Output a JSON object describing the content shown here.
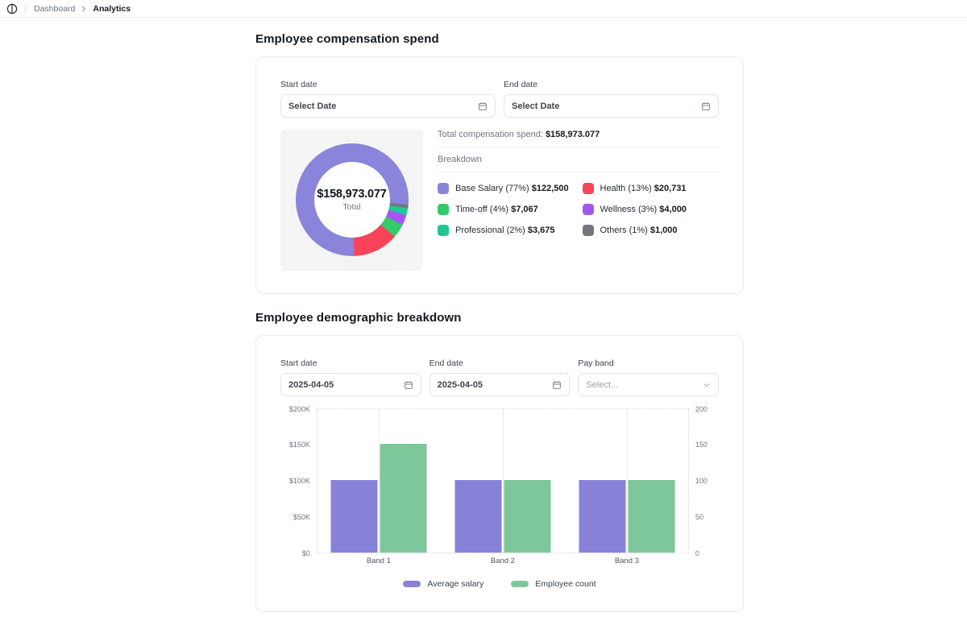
{
  "topbar": {
    "breadcrumb": {
      "parent": "Dashboard",
      "current": "Analytics"
    }
  },
  "compensation": {
    "title": "Employee compensation spend",
    "filters": {
      "start_label": "Start date",
      "start_value": "Select Date",
      "end_label": "End date",
      "end_value": "Select Date"
    },
    "total_label": "Total compensation spend:",
    "total_value": "$158,973.077",
    "donut_center_value": "$158,973.077",
    "donut_center_label": "Total",
    "breakdown_label": "Breakdown"
  },
  "demographic": {
    "title": "Employee demographic breakdown",
    "filters": {
      "start_label": "Start date",
      "start_value": "2025-04-05",
      "end_label": "End date",
      "end_value": "2025-04-05",
      "payband_label": "Pay band",
      "payband_value": "Select..."
    }
  },
  "chart_data": [
    {
      "type": "pie",
      "title": "Employee compensation spend breakdown",
      "total_label": "Total",
      "total_value": "$158,973.077",
      "start_angle_deg": 95,
      "slices": [
        {
          "name": "Base Salary",
          "percent": 77,
          "display": "Base Salary (77%)",
          "amount": "$122,500",
          "color": "#8a84da"
        },
        {
          "name": "Health",
          "percent": 13,
          "display": "Health (13%)",
          "amount": "$20,731",
          "color": "#f94358"
        },
        {
          "name": "Time-off",
          "percent": 4,
          "display": "Time-off (4%)",
          "amount": "$7,067",
          "color": "#31cb6a"
        },
        {
          "name": "Wellness",
          "percent": 3,
          "display": "Wellness (3%)",
          "amount": "$4,000",
          "color": "#a356f2"
        },
        {
          "name": "Professional",
          "percent": 2,
          "display": "Professional (2%)",
          "amount": "$3,675",
          "color": "#20c795"
        },
        {
          "name": "Others",
          "percent": 1,
          "display": "Others (1%)",
          "amount": "$1,000",
          "color": "#72767e"
        }
      ]
    },
    {
      "type": "bar",
      "title": "Employee demographic breakdown",
      "categories": [
        "Band 1",
        "Band 2",
        "Band 3"
      ],
      "series": [
        {
          "name": "Average salary",
          "axis": "left",
          "values": [
            100000,
            100000,
            100000
          ],
          "color": "#8781d8"
        },
        {
          "name": "Employee count",
          "axis": "right",
          "values": [
            150,
            100,
            100
          ],
          "color": "#7ec79b"
        }
      ],
      "left_axis": {
        "ticks": [
          "$200K",
          "$150K",
          "$100K",
          "$50K",
          "$0"
        ],
        "min": 0,
        "max": 200000
      },
      "right_axis": {
        "ticks": [
          "200",
          "150",
          "100",
          "50",
          "0"
        ],
        "min": 0,
        "max": 200
      },
      "grid": "dotted, vertical at category centers and edges, horizontal at top and bottom",
      "legend_position": "bottom"
    }
  ]
}
